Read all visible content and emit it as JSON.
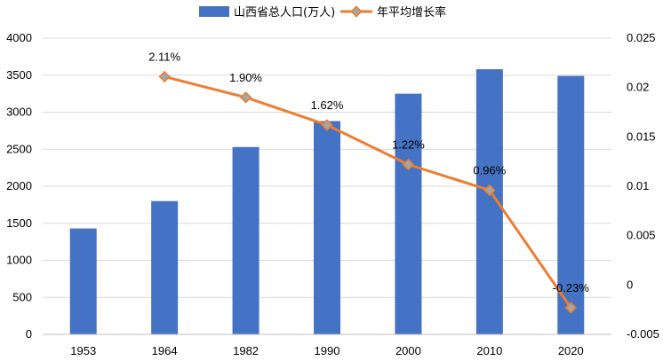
{
  "chart_data": {
    "type": "bar",
    "categories": [
      "1953",
      "1964",
      "1982",
      "1990",
      "2000",
      "2010",
      "2020"
    ],
    "series": [
      {
        "name": "山西省总人口(万人)",
        "type": "bar",
        "axis": "left",
        "color": "#4472c4",
        "values": [
          1430,
          1800,
          2530,
          2880,
          3250,
          3580,
          3490
        ]
      },
      {
        "name": "年平均增长率",
        "type": "line",
        "axis": "right",
        "color": "#ed7d31",
        "marker_color": "#a5a5a5",
        "values": [
          null,
          0.0211,
          0.019,
          0.0162,
          0.0122,
          0.0096,
          -0.0023
        ],
        "labels": [
          null,
          "2.11%",
          "1.90%",
          "1.62%",
          "1.22%",
          "0.96%",
          "-0.23%"
        ]
      }
    ],
    "y_left": {
      "min": 0,
      "max": 4000,
      "ticks": [
        "0",
        "500",
        "1000",
        "1500",
        "2000",
        "2500",
        "3000",
        "3500",
        "4000"
      ]
    },
    "y_right": {
      "min": -0.005,
      "max": 0.025,
      "ticks": [
        "-0.005",
        "0",
        "0.005",
        "0.01",
        "0.015",
        "0.02",
        "0.025"
      ]
    },
    "grid": true,
    "legend": "top"
  }
}
